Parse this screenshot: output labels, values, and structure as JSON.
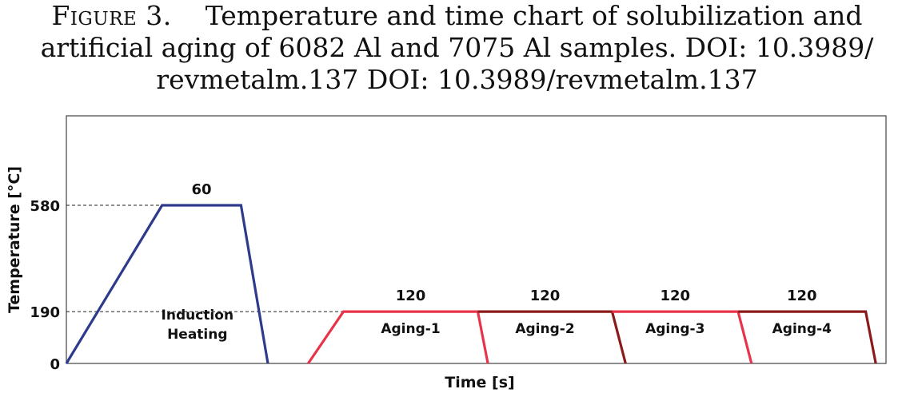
{
  "caption": {
    "figure_label": "Figure 3.",
    "text_line1": "Temperature and time chart of solubilization and",
    "text_line2": "artificial aging of 6082 Al and 7075 Al samples. DOI: 10.3989/",
    "text_line3": "revmetalm.137 DOI: 10.3989/revmetalm.137"
  },
  "chart_data": {
    "type": "line",
    "xlabel": "Time [s]",
    "ylabel": "Temperature [°C]",
    "ylim": [
      0,
      850
    ],
    "y_ticks": [
      0,
      190,
      580
    ],
    "reference_lines": [
      580,
      190
    ],
    "grid": false,
    "colors": {
      "induction": "#2e3a8c",
      "aging_light": "#e8334a",
      "aging_dark": "#8b1a1a"
    },
    "stages": [
      {
        "label_lines": [
          "Induction",
          "Heating"
        ],
        "duration_label": "60",
        "temperature": 580,
        "color": "induction",
        "profile": [
          [
            0,
            0
          ],
          [
            57,
            580
          ],
          [
            104,
            580
          ],
          [
            120,
            0
          ]
        ]
      },
      {
        "label_lines": [
          "Aging-1"
        ],
        "duration_label": "120",
        "temperature": 190,
        "color": "aging_light",
        "profile": [
          [
            144,
            0
          ],
          [
            165,
            190
          ],
          [
            245,
            190
          ],
          [
            251,
            0
          ]
        ]
      },
      {
        "label_lines": [
          "Aging-2"
        ],
        "duration_label": "120",
        "temperature": 190,
        "color": "aging_dark",
        "profile": [
          [
            245,
            190
          ],
          [
            325,
            190
          ],
          [
            333,
            0
          ]
        ]
      },
      {
        "label_lines": [
          "Aging-3"
        ],
        "duration_label": "120",
        "temperature": 190,
        "color": "aging_light",
        "profile": [
          [
            325,
            190
          ],
          [
            400,
            190
          ],
          [
            408,
            0
          ]
        ]
      },
      {
        "label_lines": [
          "Aging-4"
        ],
        "duration_label": "120",
        "temperature": 190,
        "color": "aging_dark",
        "profile": [
          [
            400,
            190
          ],
          [
            476,
            190
          ],
          [
            482,
            0
          ]
        ]
      }
    ]
  }
}
